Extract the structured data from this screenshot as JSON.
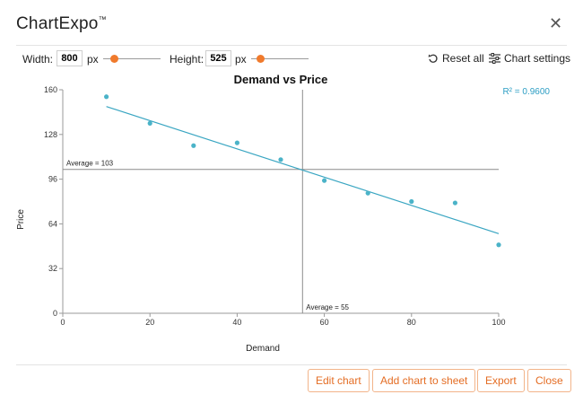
{
  "app": {
    "title": "ChartExpo",
    "trademark": "™",
    "close_icon": "close-icon"
  },
  "toolbar": {
    "width_label": "Width:",
    "width_value": "800",
    "width_unit": "px",
    "height_label": "Height:",
    "height_value": "525",
    "height_unit": "px",
    "reset_label": "Reset all",
    "reset_icon": "undo-icon",
    "settings_label": "Chart settings",
    "settings_icon": "sliders-icon",
    "accent_color": "#f07a2c"
  },
  "chart_data": {
    "type": "scatter",
    "title": "Demand vs Price",
    "xlabel": "Demand",
    "ylabel": "Price",
    "xlim": [
      0,
      100
    ],
    "ylim": [
      0,
      160
    ],
    "x_ticks": [
      0,
      20,
      40,
      60,
      80,
      100
    ],
    "y_ticks": [
      0,
      32,
      64,
      96,
      128,
      160
    ],
    "points": [
      {
        "x": 10,
        "y": 155
      },
      {
        "x": 20,
        "y": 136
      },
      {
        "x": 30,
        "y": 120
      },
      {
        "x": 40,
        "y": 122
      },
      {
        "x": 50,
        "y": 110
      },
      {
        "x": 60,
        "y": 95
      },
      {
        "x": 70,
        "y": 86
      },
      {
        "x": 80,
        "y": 80
      },
      {
        "x": 90,
        "y": 79
      },
      {
        "x": 100,
        "y": 49
      }
    ],
    "trendline": {
      "x": [
        10,
        100
      ],
      "y": [
        148,
        57
      ]
    },
    "average_x": 55,
    "average_y": 103,
    "average_x_label": "Average = 55",
    "average_y_label": "Average = 103",
    "r_squared_label": "R² = 0.9600",
    "point_color": "#4bb3c8",
    "trendline_color": "#3aa6c2",
    "r_squared_color": "#2d9ec4",
    "grid": false
  },
  "footer": {
    "edit_label": "Edit chart",
    "add_label": "Add chart to sheet",
    "export_label": "Export",
    "close_label": "Close",
    "button_color": "#e46d24"
  }
}
